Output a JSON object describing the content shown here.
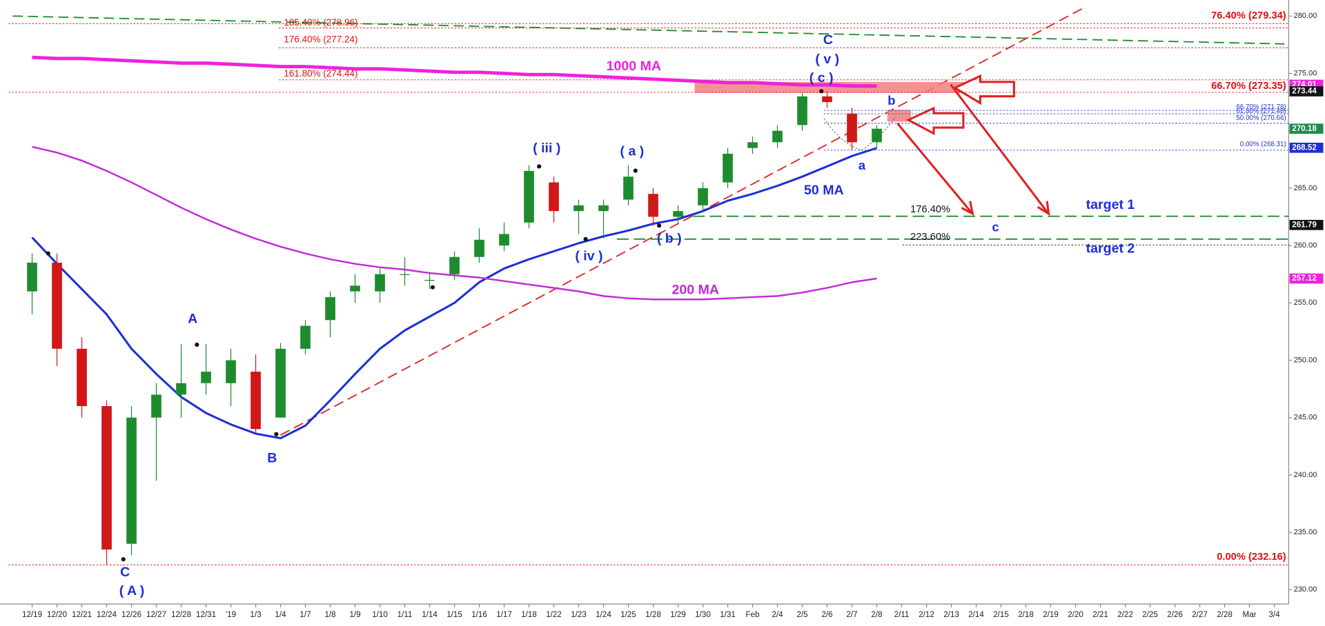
{
  "chart_data": {
    "type": "candlestick",
    "categories": [
      "12/19",
      "12/20",
      "12/21",
      "12/24",
      "12/26",
      "12/27",
      "12/28",
      "12/31",
      "'19",
      "1/3",
      "1/4",
      "1/7",
      "1/8",
      "1/9",
      "1/10",
      "1/11",
      "1/14",
      "1/15",
      "1/16",
      "1/17",
      "1/18",
      "1/22",
      "1/23",
      "1/24",
      "1/25",
      "1/28",
      "1/29",
      "1/30",
      "1/31",
      "Feb",
      "2/4",
      "2/5",
      "2/6",
      "2/7",
      "2/8",
      "2/11",
      "2/12",
      "2/13",
      "2/14",
      "2/15",
      "2/18",
      "2/19",
      "2/20",
      "2/21",
      "2/22",
      "2/25",
      "2/26",
      "2/27",
      "2/28",
      "Mar",
      "3/4"
    ],
    "open": [
      256,
      258.5,
      251,
      246,
      234,
      245,
      247,
      248,
      248,
      249,
      245,
      251,
      253.5,
      256,
      256,
      257.5,
      257,
      257.5,
      259,
      260,
      262,
      265.5,
      263,
      263,
      264,
      264.5,
      262.5,
      263.5,
      265.5,
      268.5,
      269,
      270.5,
      273,
      271.5,
      269,
      null,
      null,
      null,
      null,
      null,
      null,
      null,
      null,
      null,
      null,
      null,
      null,
      null,
      null,
      null,
      null
    ],
    "high": [
      259.3,
      259.3,
      252,
      246.5,
      246,
      248,
      251.4,
      251.4,
      251,
      250.5,
      251.5,
      253.5,
      256,
      257.5,
      258,
      259,
      257.7,
      259.5,
      261.5,
      262,
      267,
      266,
      264,
      264,
      267,
      265,
      263.5,
      265.5,
      268.5,
      269.5,
      270.5,
      273.3,
      273.44,
      272,
      270.5,
      null,
      null,
      null,
      null,
      null,
      null,
      null,
      null,
      null,
      null,
      null,
      null,
      null,
      null,
      null,
      null
    ],
    "low": [
      254,
      249.5,
      245,
      232.16,
      233,
      239.5,
      245,
      247,
      246,
      243.5,
      245,
      250.5,
      252,
      255,
      255,
      256.5,
      256.2,
      257,
      258.5,
      259.5,
      261.5,
      262,
      261,
      260.6,
      263.5,
      261.7,
      262,
      263,
      265,
      268,
      268.5,
      270,
      272,
      268.31,
      268.5,
      null,
      null,
      null,
      null,
      null,
      null,
      null,
      null,
      null,
      null,
      null,
      null,
      null,
      null,
      null,
      null
    ],
    "close": [
      258.5,
      251,
      246,
      233.5,
      245,
      247,
      248,
      249,
      250,
      244,
      251,
      253,
      255.5,
      256.5,
      257.5,
      257.5,
      257,
      259,
      260.5,
      261,
      266.5,
      263,
      263.5,
      263.5,
      266,
      262.5,
      263,
      265,
      268,
      269,
      270,
      273,
      272.5,
      269,
      270.18,
      null,
      null,
      null,
      null,
      null,
      null,
      null,
      null,
      null,
      null,
      null,
      null,
      null,
      null,
      null,
      null
    ],
    "up_color": "#1e8c2e",
    "down_color": "#d01818",
    "lines": [
      {
        "name": "1000 MA",
        "color": "#ee22dd",
        "values": [
          276.4,
          276.3,
          276.3,
          276.2,
          276.1,
          276.0,
          275.9,
          275.9,
          275.8,
          275.7,
          275.6,
          275.6,
          275.5,
          275.4,
          275.4,
          275.3,
          275.2,
          275.1,
          275.1,
          275.0,
          274.9,
          274.9,
          274.8,
          274.7,
          274.6,
          274.5,
          274.4,
          274.3,
          274.2,
          274.2,
          274.1,
          274.0,
          274.0,
          273.9,
          273.9,
          null,
          null,
          null,
          null,
          null,
          null,
          null,
          null,
          null,
          null,
          null,
          null,
          null,
          null,
          null,
          null
        ]
      },
      {
        "name": "50 MA",
        "color": "#1d2fd6",
        "values": [
          260.7,
          258.4,
          256.2,
          254,
          251,
          248.8,
          246.8,
          245.4,
          244.4,
          243.6,
          243.2,
          244.3,
          246.5,
          248.8,
          251,
          252.6,
          253.8,
          255,
          256.8,
          258,
          258.8,
          259.5,
          260.2,
          260.8,
          261.3,
          261.9,
          262.3,
          263,
          263.9,
          264.5,
          265.2,
          266,
          266.9,
          267.8,
          268.5,
          null,
          null,
          null,
          null,
          null,
          null,
          null,
          null,
          null,
          null,
          null,
          null,
          null,
          null,
          null,
          null
        ]
      },
      {
        "name": "200 MA",
        "color": "#c02ad6",
        "values": [
          268.6,
          268.1,
          267.4,
          266.5,
          265.5,
          264.4,
          263.3,
          262.3,
          261.4,
          260.6,
          259.9,
          259.3,
          258.8,
          258.4,
          258.1,
          257.9,
          257.6,
          257.4,
          257.2,
          256.9,
          256.6,
          256.3,
          256,
          255.6,
          255.4,
          255.3,
          255.3,
          255.3,
          255.4,
          255.5,
          255.6,
          255.9,
          256.3,
          256.8,
          257.12,
          null,
          null,
          null,
          null,
          null,
          null,
          null,
          null,
          null,
          null,
          null,
          null,
          null,
          null,
          null,
          null
        ]
      }
    ],
    "levels": [
      {
        "label": "76.40% (279.34)",
        "value": 279.34,
        "color": "#e01010"
      },
      {
        "label": "185.40% (278.96)",
        "value": 278.96,
        "color": "#e01010"
      },
      {
        "label": "176.40% (277.24)",
        "value": 277.24,
        "color": "#e01010"
      },
      {
        "label": "161.80% (274.44)",
        "value": 274.44,
        "color": "#e01010"
      },
      {
        "label": "66.70% (273.35)",
        "value": 273.35,
        "color": "#e01010"
      },
      {
        "label": "0.00% (232.16)",
        "value": 232.16,
        "color": "#e01010"
      },
      {
        "label": "66.70% (271.78)",
        "value": 271.78,
        "color": "#2233cc"
      },
      {
        "label": "61.80% (271.48)",
        "value": 271.48,
        "color": "#2233cc"
      },
      {
        "label": "50.00% (270.66)",
        "value": 270.66,
        "color": "#2233cc"
      },
      {
        "label": "0.00% (268.31)",
        "value": 268.31,
        "color": "#2233cc"
      }
    ],
    "price_tags": [
      {
        "value": 274.01,
        "color": "#ee22dd"
      },
      {
        "value": 273.44,
        "color": "#111111"
      },
      {
        "value": 270.18,
        "color": "#1e8c4e"
      },
      {
        "value": 268.52,
        "color": "#1d2fd6"
      },
      {
        "value": 261.79,
        "color": "#111111"
      },
      {
        "value": 257.12,
        "color": "#ee22dd"
      }
    ],
    "annotations": [
      "C",
      "( A )",
      "A",
      "B",
      "( iii )",
      "( iv )",
      "( a )",
      "( b )",
      "C",
      "( v )",
      "( c )",
      "b",
      "a",
      "c",
      "target 1",
      "target 2",
      "176.40%",
      "223.60%"
    ],
    "ylim": [
      229,
      281
    ],
    "yticks": [
      {
        "value": 230,
        "label": "230.00"
      },
      {
        "value": 235,
        "label": "235.00"
      },
      {
        "value": 240,
        "label": "240.00"
      },
      {
        "value": 245,
        "label": "245.00"
      },
      {
        "value": 250,
        "label": "250.00"
      },
      {
        "value": 255,
        "label": "255.00"
      },
      {
        "value": 260,
        "label": "260.00"
      },
      {
        "value": 265,
        "label": "265.00"
      },
      {
        "value": 270,
        "label": "270.00"
      },
      {
        "value": 275,
        "label": "275.00"
      },
      {
        "value": 280,
        "label": "280.00"
      }
    ]
  }
}
